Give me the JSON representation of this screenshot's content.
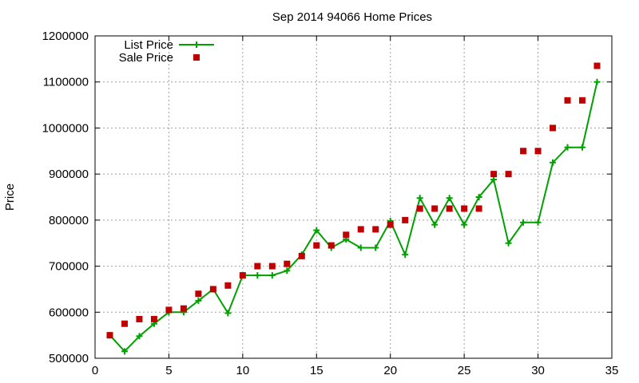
{
  "chart_data": {
    "type": "line",
    "title": "Sep 2014 94066 Home Prices",
    "xlabel": "",
    "ylabel": "Price",
    "xlim": [
      0,
      35
    ],
    "ylim": [
      500000,
      1200000
    ],
    "xticks": [
      0,
      5,
      10,
      15,
      20,
      25,
      30,
      35
    ],
    "yticks": [
      500000,
      600000,
      700000,
      800000,
      900000,
      1000000,
      1100000,
      1200000
    ],
    "grid": true,
    "legend_position": "top-left",
    "series": [
      {
        "name": "List Price",
        "style": "line+cross",
        "color": "#00a000",
        "points": [
          [
            1,
            550000
          ],
          [
            2,
            515000
          ],
          [
            3,
            548000
          ],
          [
            4,
            575000
          ],
          [
            5,
            600000
          ],
          [
            6,
            600000
          ],
          [
            7,
            625000
          ],
          [
            8,
            650000
          ],
          [
            9,
            598000
          ],
          [
            10,
            680000
          ],
          [
            11,
            680000
          ],
          [
            12,
            680000
          ],
          [
            13,
            690000
          ],
          [
            14,
            725000
          ],
          [
            15,
            778000
          ],
          [
            16,
            740000
          ],
          [
            17,
            758000
          ],
          [
            18,
            740000
          ],
          [
            19,
            740000
          ],
          [
            20,
            798000
          ],
          [
            21,
            725000
          ],
          [
            22,
            848000
          ],
          [
            23,
            790000
          ],
          [
            24,
            848000
          ],
          [
            25,
            790000
          ],
          [
            26,
            850000
          ],
          [
            27,
            888000
          ],
          [
            28,
            750000
          ],
          [
            29,
            795000
          ],
          [
            30,
            795000
          ],
          [
            31,
            925000
          ],
          [
            32,
            958000
          ],
          [
            33,
            958000
          ],
          [
            34,
            1100000
          ]
        ]
      },
      {
        "name": "Sale Price",
        "style": "square",
        "color": "#c00000",
        "points": [
          [
            1,
            550000
          ],
          [
            2,
            575000
          ],
          [
            3,
            585000
          ],
          [
            4,
            585000
          ],
          [
            5,
            605000
          ],
          [
            6,
            608000
          ],
          [
            7,
            640000
          ],
          [
            8,
            650000
          ],
          [
            9,
            658000
          ],
          [
            10,
            680000
          ],
          [
            11,
            700000
          ],
          [
            12,
            700000
          ],
          [
            13,
            705000
          ],
          [
            14,
            722000
          ],
          [
            15,
            745000
          ],
          [
            16,
            745000
          ],
          [
            17,
            768000
          ],
          [
            18,
            780000
          ],
          [
            19,
            780000
          ],
          [
            20,
            790000
          ],
          [
            21,
            800000
          ],
          [
            22,
            825000
          ],
          [
            23,
            825000
          ],
          [
            24,
            825000
          ],
          [
            25,
            825000
          ],
          [
            26,
            825000
          ],
          [
            27,
            900000
          ],
          [
            28,
            900000
          ],
          [
            29,
            950000
          ],
          [
            30,
            950000
          ],
          [
            31,
            1000000
          ],
          [
            32,
            1060000
          ],
          [
            33,
            1060000
          ],
          [
            34,
            1135000
          ]
        ]
      }
    ]
  }
}
